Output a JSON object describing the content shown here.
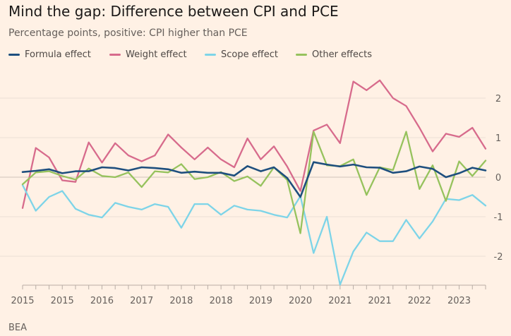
{
  "title": "Mind the gap: Difference between CPI and PCE",
  "subtitle": "Percentage points, positive: CPI higher than PCE",
  "source": "BEA",
  "colors": {
    "background": "#fff1e5",
    "formula": "#1e4f7e",
    "weight": "#d76b8c",
    "scope": "#7dd4e8",
    "other": "#96c25d",
    "grid": "#ebdfd5",
    "zero": "#cfc3b9"
  },
  "chart_data": {
    "type": "line",
    "title": "Mind the gap: Difference between CPI and PCE",
    "subtitle": "Percentage points, positive: CPI higher than PCE",
    "xlabel": "",
    "ylabel": "",
    "ylim": [
      -2.8,
      2.7
    ],
    "yticks": [
      {
        "value": 2,
        "label": "2"
      },
      {
        "value": 1,
        "label": "1"
      },
      {
        "value": 0,
        "label": "0"
      },
      {
        "value": -1,
        "label": "-1"
      },
      {
        "value": -2,
        "label": "-2"
      }
    ],
    "xticks": [
      {
        "index": 0,
        "label": "2015"
      },
      {
        "index": 3,
        "label": "2015"
      },
      {
        "index": 6,
        "label": "2016"
      },
      {
        "index": 9,
        "label": "2017"
      },
      {
        "index": 12,
        "label": "2018"
      },
      {
        "index": 15,
        "label": "2018"
      },
      {
        "index": 18,
        "label": "2019"
      },
      {
        "index": 21,
        "label": "2020"
      },
      {
        "index": 24,
        "label": "2021"
      },
      {
        "index": 27,
        "label": "2021"
      },
      {
        "index": 30,
        "label": "2022"
      },
      {
        "index": 33,
        "label": "2023"
      }
    ],
    "grid": true,
    "legend_position": "top-left",
    "series": [
      {
        "name": "Formula effect",
        "key": "formula",
        "values": [
          0.13,
          0.16,
          0.2,
          0.1,
          0.15,
          0.15,
          0.25,
          0.23,
          0.17,
          0.25,
          0.23,
          0.2,
          0.11,
          0.14,
          0.11,
          0.11,
          0.04,
          0.28,
          0.15,
          0.25,
          -0.02,
          -0.5,
          0.38,
          0.32,
          0.27,
          0.32,
          0.25,
          0.24,
          0.11,
          0.15,
          0.27,
          0.21,
          0.0,
          0.1,
          0.24,
          0.17
        ]
      },
      {
        "name": "Weight effect",
        "key": "weight",
        "values": [
          -0.78,
          0.74,
          0.5,
          -0.08,
          -0.12,
          0.88,
          0.37,
          0.86,
          0.55,
          0.4,
          0.55,
          1.08,
          0.75,
          0.45,
          0.75,
          0.45,
          0.25,
          0.98,
          0.45,
          0.78,
          0.27,
          -0.35,
          1.18,
          1.33,
          0.86,
          2.42,
          2.2,
          2.45,
          2.0,
          1.8,
          1.25,
          0.65,
          1.1,
          1.02,
          1.25,
          0.72
        ]
      },
      {
        "name": "Scope effect",
        "key": "scope",
        "values": [
          -0.2,
          -0.85,
          -0.5,
          -0.35,
          -0.8,
          -0.95,
          -1.02,
          -0.65,
          -0.75,
          -0.82,
          -0.68,
          -0.75,
          -1.28,
          -0.68,
          -0.68,
          -0.95,
          -0.72,
          -0.82,
          -0.85,
          -0.95,
          -1.02,
          -0.48,
          -1.92,
          -1.0,
          -2.72,
          -1.88,
          -1.4,
          -1.62,
          -1.62,
          -1.08,
          -1.55,
          -1.12,
          -0.55,
          -0.58,
          -0.45,
          -0.72
        ]
      },
      {
        "name": "Other effects",
        "key": "other",
        "values": [
          -0.18,
          0.12,
          0.15,
          0.03,
          -0.06,
          0.22,
          0.03,
          0.0,
          0.12,
          -0.25,
          0.15,
          0.12,
          0.33,
          -0.05,
          0.0,
          0.13,
          -0.1,
          0.02,
          -0.22,
          0.25,
          -0.07,
          -1.42,
          1.15,
          0.3,
          0.28,
          0.45,
          -0.45,
          0.25,
          0.18,
          1.15,
          -0.3,
          0.3,
          -0.6,
          0.4,
          0.03,
          0.42
        ]
      }
    ]
  }
}
